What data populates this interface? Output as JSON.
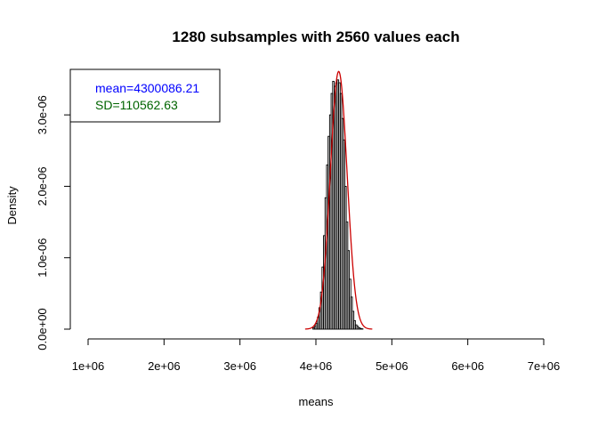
{
  "chart_data": {
    "type": "bar",
    "title": "1280 subsamples with 2560 values each",
    "xlabel": "means",
    "ylabel": "Density",
    "xlim": [
      1000000,
      7000000
    ],
    "ylim": [
      0,
      3.5e-06
    ],
    "x_ticks": [
      1000000,
      2000000,
      3000000,
      4000000,
      5000000,
      6000000,
      7000000
    ],
    "x_tick_labels": [
      "1e+06",
      "2e+06",
      "3e+06",
      "4e+06",
      "5e+06",
      "6e+06",
      "7e+06"
    ],
    "y_ticks": [
      0,
      1e-06,
      2e-06,
      3e-06
    ],
    "y_tick_labels": [
      "0.0e+00",
      "1.0e-06",
      "2.0e-06",
      "3.0e-06"
    ],
    "bin_width": 20000,
    "bins_start": [
      3960000,
      3980000,
      4000000,
      4020000,
      4040000,
      4060000,
      4080000,
      4100000,
      4120000,
      4140000,
      4160000,
      4180000,
      4200000,
      4220000,
      4240000,
      4260000,
      4280000,
      4300000,
      4320000,
      4340000,
      4360000,
      4380000,
      4400000,
      4420000,
      4440000,
      4460000,
      4480000,
      4500000,
      4520000,
      4540000,
      4560000,
      4580000,
      4600000
    ],
    "densities": [
      2e-08,
      4e-08,
      8e-08,
      1.7e-07,
      3e-07,
      5.2e-07,
      8.7e-07,
      1.31e-06,
      1.84e-06,
      2.3e-06,
      2.7e-06,
      3e-06,
      3.3e-06,
      3.47e-06,
      3.4e-06,
      3.45e-06,
      3.49e-06,
      3.45e-06,
      3.3e-06,
      2.95e-06,
      2.65e-06,
      2e-06,
      1.5e-06,
      1.1e-06,
      7e-07,
      4.5e-07,
      2.5e-07,
      1.2e-07,
      6e-08,
      4e-08,
      2e-08,
      1e-08,
      5e-09
    ],
    "normal_curve": {
      "mean": 4300086.21,
      "sd": 110562.63,
      "color": "#cc0000"
    },
    "legend": {
      "position": "top-left",
      "entries": [
        {
          "text": "mean=4300086.21",
          "color": "#0000ff"
        },
        {
          "text": "SD=110562.63",
          "color": "#006400"
        }
      ]
    },
    "grid": false
  }
}
